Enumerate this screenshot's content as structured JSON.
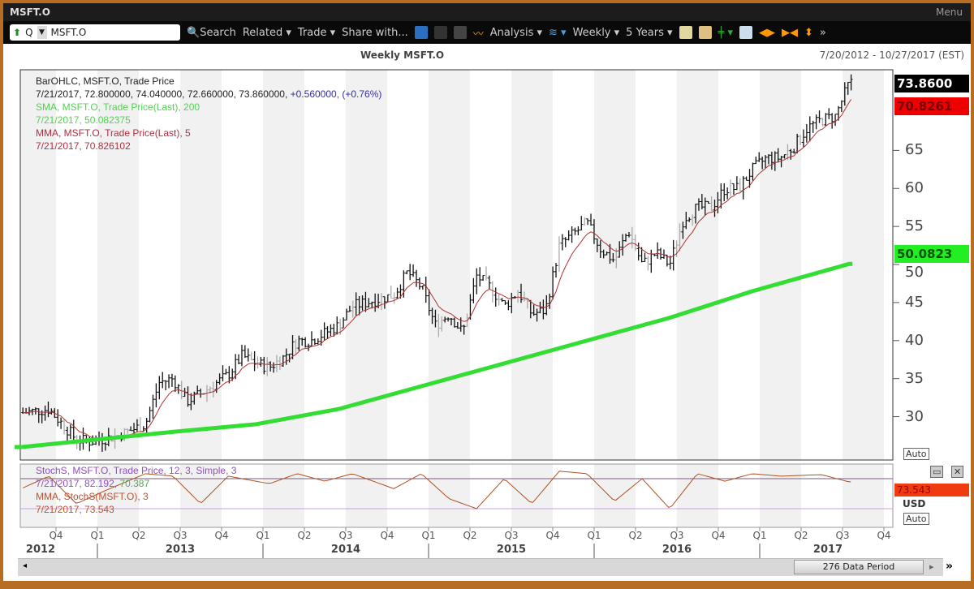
{
  "window": {
    "title": "MSFT.O",
    "menu": "Menu"
  },
  "toolbar": {
    "ric_prefix": "Q",
    "ric": "MSFT.O",
    "search": "Search",
    "related": "Related ▾",
    "trade": "Trade ▾",
    "share": "Share with...",
    "analysis": "Analysis ▾",
    "interval": "Weekly ▾",
    "range": "5 Years ▾"
  },
  "header": {
    "title": "Weekly MSFT.O",
    "date_range": "7/20/2012 - 10/27/2017 (EST)"
  },
  "legend": {
    "l1": "BarOHLC, MSFT.O, Trade Price",
    "l2a": "7/21/2017, 72.800000, 74.040000, 72.660000, 73.860000, ",
    "l2b": "+0.560000, (+0.76%)",
    "l3": "SMA, MSFT.O, Trade Price(Last),  200",
    "l4": "7/21/2017, 50.082375",
    "l5": "MMA, MSFT.O, Trade Price(Last),  5",
    "l6": "7/21/2017, 70.826102"
  },
  "stoch_legend": {
    "l1": "StochS, MSFT.O, Trade Price,  12, 3, Simple, 3",
    "l2a": "7/21/2017, 82.192, ",
    "l2b": "70.387",
    "l3": "MMA, StochS(MSFT.O),  3",
    "l4": "7/21/2017, 73.543"
  },
  "tags": {
    "last": "73.8600",
    "mma": "70.8261",
    "sma": "50.0823",
    "stoch": "73.543",
    "currency": "USD",
    "auto": "Auto"
  },
  "footer": {
    "period": "276 Data Period"
  },
  "colors": {
    "sma": "#33dd33",
    "mma": "#b03030",
    "bars": "#111111",
    "stoch": "#b05020"
  },
  "chart_data": {
    "type": "ohlc",
    "title": "Weekly MSFT.O",
    "ylim": [
      24.3,
      75.6
    ],
    "yticks": [
      30,
      35,
      40,
      45,
      50,
      55,
      60,
      65
    ],
    "quarters": [
      "Q4",
      "Q1",
      "Q2",
      "Q3",
      "Q4",
      "Q1",
      "Q2",
      "Q3",
      "Q4",
      "Q1",
      "Q2",
      "Q3",
      "Q4",
      "Q1",
      "Q2",
      "Q3",
      "Q4",
      "Q1",
      "Q2",
      "Q3",
      "Q4"
    ],
    "years": [
      "2012",
      "2013",
      "2014",
      "2015",
      "2016",
      "2017"
    ],
    "close_keypoints": [
      [
        "2012-07",
        30.5
      ],
      [
        "2012-09",
        31
      ],
      [
        "2012-11",
        27
      ],
      [
        "2012-12",
        26.7
      ],
      [
        "2013-02",
        27.5
      ],
      [
        "2013-04",
        29
      ],
      [
        "2013-05",
        34.5
      ],
      [
        "2013-06",
        35
      ],
      [
        "2013-07",
        32
      ],
      [
        "2013-08",
        33
      ],
      [
        "2013-10",
        35.5
      ],
      [
        "2013-11",
        38
      ],
      [
        "2013-12",
        37
      ],
      [
        "2014-01",
        36.5
      ],
      [
        "2014-02",
        37.8
      ],
      [
        "2014-03",
        40
      ],
      [
        "2014-04",
        40
      ],
      [
        "2014-06",
        42
      ],
      [
        "2014-07",
        44.5
      ],
      [
        "2014-08",
        45
      ],
      [
        "2014-10",
        46
      ],
      [
        "2014-11",
        49
      ],
      [
        "2014-12",
        47
      ],
      [
        "2015-01",
        42
      ],
      [
        "2015-02",
        43.5
      ],
      [
        "2015-03",
        41
      ],
      [
        "2015-04",
        48.5
      ],
      [
        "2015-05",
        47
      ],
      [
        "2015-06",
        44.5
      ],
      [
        "2015-07",
        46.5
      ],
      [
        "2015-08",
        43.5
      ],
      [
        "2015-09",
        44
      ],
      [
        "2015-10",
        52.5
      ],
      [
        "2015-11",
        54
      ],
      [
        "2015-12",
        55.5
      ],
      [
        "2016-01",
        52
      ],
      [
        "2016-02",
        50.5
      ],
      [
        "2016-03",
        54.5
      ],
      [
        "2016-04",
        50
      ],
      [
        "2016-05",
        51.5
      ],
      [
        "2016-06",
        50
      ],
      [
        "2016-07",
        56
      ],
      [
        "2016-08",
        57.5
      ],
      [
        "2016-09",
        57.5
      ],
      [
        "2016-10",
        60
      ],
      [
        "2016-11",
        60
      ],
      [
        "2016-12",
        62.5
      ],
      [
        "2017-01",
        64
      ],
      [
        "2017-02",
        64
      ],
      [
        "2017-03",
        65.5
      ],
      [
        "2017-04",
        68
      ],
      [
        "2017-05",
        69
      ],
      [
        "2017-06",
        69.5
      ],
      [
        "2017-07",
        73.86
      ]
    ],
    "sma200_keypoints": [
      [
        "2012-07",
        26
      ],
      [
        "2013-06",
        28
      ],
      [
        "2013-12",
        29
      ],
      [
        "2014-06",
        31
      ],
      [
        "2014-12",
        34
      ],
      [
        "2015-06",
        37
      ],
      [
        "2015-12",
        40
      ],
      [
        "2016-06",
        43
      ],
      [
        "2016-12",
        46.5
      ],
      [
        "2017-07",
        50.08
      ]
    ],
    "stoch_keypoints": [
      [
        "2012-07",
        60
      ],
      [
        "2012-09",
        85
      ],
      [
        "2012-11",
        30
      ],
      [
        "2013-01",
        55
      ],
      [
        "2013-04",
        90
      ],
      [
        "2013-06",
        85
      ],
      [
        "2013-08",
        30
      ],
      [
        "2013-10",
        85
      ],
      [
        "2014-01",
        70
      ],
      [
        "2014-03",
        90
      ],
      [
        "2014-05",
        75
      ],
      [
        "2014-07",
        90
      ],
      [
        "2014-10",
        60
      ],
      [
        "2014-12",
        90
      ],
      [
        "2015-02",
        40
      ],
      [
        "2015-04",
        20
      ],
      [
        "2015-06",
        80
      ],
      [
        "2015-08",
        30
      ],
      [
        "2015-10",
        95
      ],
      [
        "2015-12",
        90
      ],
      [
        "2016-02",
        35
      ],
      [
        "2016-04",
        80
      ],
      [
        "2016-06",
        20
      ],
      [
        "2016-08",
        90
      ],
      [
        "2016-10",
        75
      ],
      [
        "2016-12",
        90
      ],
      [
        "2017-02",
        85
      ],
      [
        "2017-05",
        88
      ],
      [
        "2017-07",
        73.5
      ]
    ],
    "stoch_levels": [
      80,
      20
    ]
  }
}
